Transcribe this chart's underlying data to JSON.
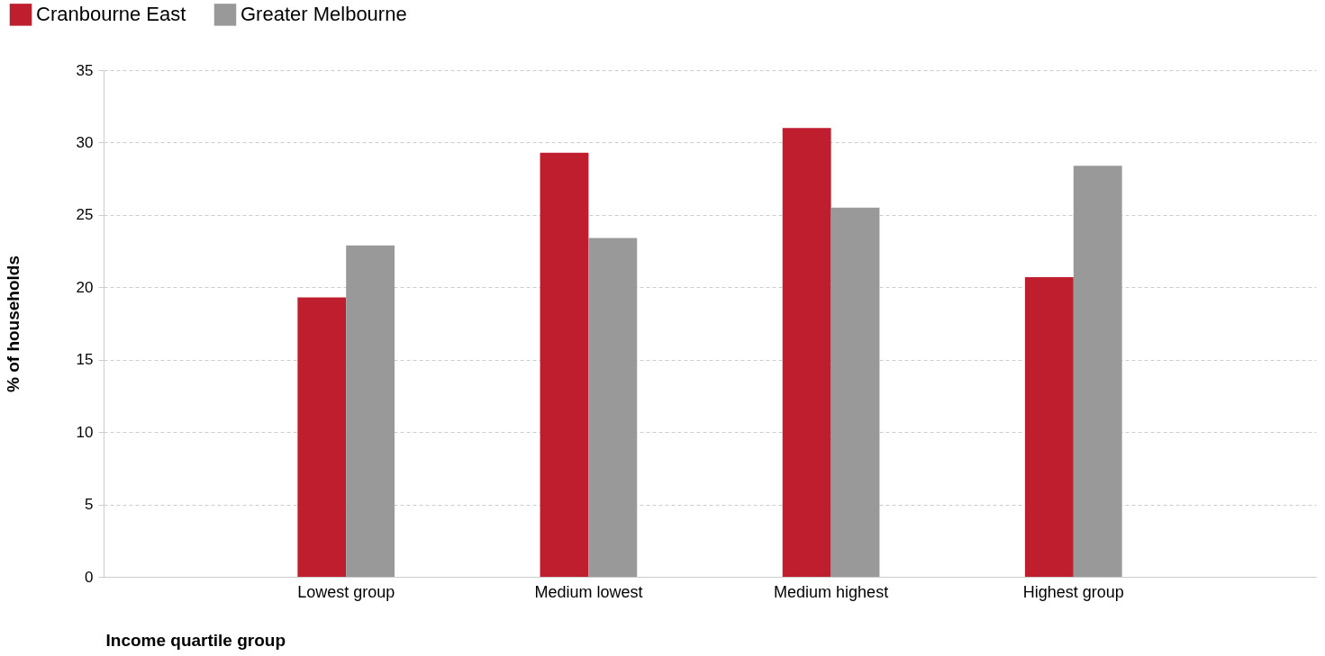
{
  "chart_data": {
    "type": "bar",
    "xlabel": "Income quartile group",
    "ylabel": "% of households",
    "categories": [
      "Lowest group",
      "Medium lowest",
      "Medium highest",
      "Highest group"
    ],
    "series": [
      {
        "name": "Cranbourne East",
        "color": "#be1e2d",
        "values": [
          19.3,
          29.3,
          31.0,
          20.7
        ]
      },
      {
        "name": "Greater Melbourne",
        "color": "#999999",
        "values": [
          22.9,
          23.4,
          25.5,
          28.4
        ]
      }
    ],
    "ylim": [
      0,
      35
    ],
    "yticks": [
      0,
      5,
      10,
      15,
      20,
      25,
      30,
      35
    ],
    "grid": "y",
    "legend": "top left"
  }
}
